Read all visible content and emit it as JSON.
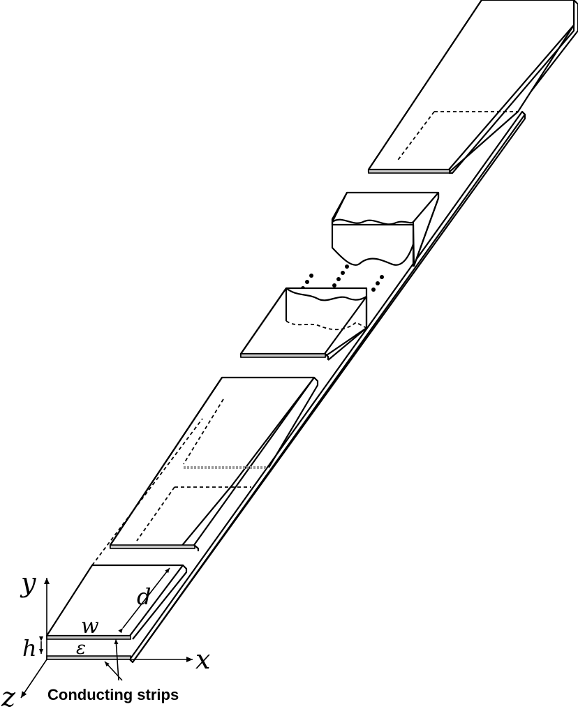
{
  "labels": {
    "axis_x": "x",
    "axis_y": "y",
    "axis_z": "z",
    "width": "w",
    "period": "d",
    "height": "h",
    "permittivity": "ε",
    "conductors": "Conducting strips"
  }
}
